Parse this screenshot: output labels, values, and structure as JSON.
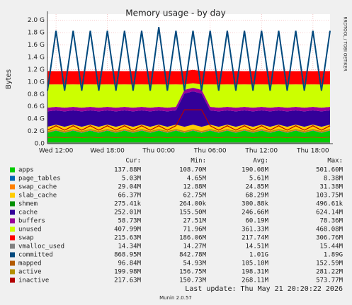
{
  "chart_data": {
    "type": "area",
    "title": "Memory usage - by day",
    "y_label": "Bytes",
    "side_note": "RRDTOOL / TOBI OETIKER",
    "footer": "Last update: Thu May 21 20:20:22 2026",
    "version": "Munin 2.0.57",
    "grid": true,
    "categories": [
      null,
      "Wed 12:00",
      null,
      null,
      null,
      null,
      null,
      "Wed 18:00",
      null,
      null,
      null,
      null,
      null,
      "Thu 00:00",
      null,
      null,
      null,
      null,
      null,
      "Thu 06:00",
      null,
      null,
      null,
      null,
      null,
      "Thu 12:00",
      null,
      null,
      null,
      null,
      null,
      "Thu 18:00",
      null,
      null
    ],
    "ylim": [
      0,
      2100000000.0
    ],
    "yticks": [
      {
        "value": 0,
        "label": "0.0"
      },
      {
        "value": 200000000.0,
        "label": "0.2 G"
      },
      {
        "value": 400000000.0,
        "label": "0.4 G"
      },
      {
        "value": 600000000.0,
        "label": "0.6 G"
      },
      {
        "value": 800000000.0,
        "label": "0.8 G"
      },
      {
        "value": 1000000000.0,
        "label": "1.0 G"
      },
      {
        "value": 1200000000.0,
        "label": "1.2 G"
      },
      {
        "value": 1400000000.0,
        "label": "1.4 G"
      },
      {
        "value": 1600000000.0,
        "label": "1.6 G"
      },
      {
        "value": 1800000000.0,
        "label": "1.8 G"
      },
      {
        "value": 2000000000.0,
        "label": "2.0 G"
      }
    ],
    "legend_columns": [
      "Cur:",
      "Min:",
      "Avg:",
      "Max:"
    ],
    "series": [
      {
        "name": "apps",
        "color": "#00CC00",
        "style": "area",
        "stats": [
          "137.88M",
          "108.70M",
          "190.08M",
          "501.60M"
        ],
        "values": [
          175000000.0,
          210000000.0,
          175000000.0,
          210000000.0,
          175000000.0,
          210000000.0,
          175000000.0,
          210000000.0,
          175000000.0,
          210000000.0,
          175000000.0,
          210000000.0,
          175000000.0,
          210000000.0,
          175000000.0,
          210000000.0,
          175000000.0,
          210000000.0,
          175000000.0,
          210000000.0,
          175000000.0,
          210000000.0,
          175000000.0,
          210000000.0,
          175000000.0,
          210000000.0,
          175000000.0,
          210000000.0,
          175000000.0,
          210000000.0,
          175000000.0,
          210000000.0,
          175000000.0,
          210000000.0
        ]
      },
      {
        "name": "page_tables",
        "color": "#0066B3",
        "style": "area",
        "stats": [
          "5.03M",
          "4.65M",
          "5.61M",
          "8.38M"
        ],
        "values": [
          5500000.0,
          5800000.0,
          5500000.0,
          5800000.0,
          5500000.0,
          5800000.0,
          5500000.0,
          5800000.0,
          5500000.0,
          5800000.0,
          5500000.0,
          5800000.0,
          5500000.0,
          5800000.0,
          5500000.0,
          5800000.0,
          5500000.0,
          5800000.0,
          5500000.0,
          5800000.0,
          5500000.0,
          5800000.0,
          5500000.0,
          5800000.0,
          5500000.0,
          5800000.0,
          5500000.0,
          5800000.0,
          5500000.0,
          5800000.0,
          5500000.0,
          5800000.0,
          5500000.0,
          5800000.0
        ]
      },
      {
        "name": "swap_cache",
        "color": "#FF8000",
        "style": "area",
        "stats": [
          "29.04M",
          "12.88M",
          "24.85M",
          "31.38M"
        ],
        "values": [
          25000000.0,
          24000000.0,
          25000000.0,
          24000000.0,
          25000000.0,
          24000000.0,
          25000000.0,
          24000000.0,
          25000000.0,
          24000000.0,
          25000000.0,
          24000000.0,
          25000000.0,
          24000000.0,
          25000000.0,
          24000000.0,
          25000000.0,
          24000000.0,
          25000000.0,
          24000000.0,
          25000000.0,
          24000000.0,
          25000000.0,
          24000000.0,
          25000000.0,
          24000000.0,
          25000000.0,
          24000000.0,
          25000000.0,
          24000000.0,
          25000000.0,
          24000000.0,
          25000000.0,
          24000000.0
        ]
      },
      {
        "name": "slab_cache",
        "color": "#FFCC00",
        "style": "area",
        "stats": [
          "66.37M",
          "62.75M",
          "68.29M",
          "103.75M"
        ],
        "values": [
          68000000.0,
          69000000.0,
          68000000.0,
          69000000.0,
          68000000.0,
          69000000.0,
          68000000.0,
          69000000.0,
          68000000.0,
          69000000.0,
          68000000.0,
          69000000.0,
          68000000.0,
          69000000.0,
          68000000.0,
          69000000.0,
          68000000.0,
          69000000.0,
          68000000.0,
          69000000.0,
          68000000.0,
          69000000.0,
          68000000.0,
          69000000.0,
          68000000.0,
          69000000.0,
          68000000.0,
          69000000.0,
          68000000.0,
          69000000.0,
          68000000.0,
          69000000.0,
          68000000.0,
          69000000.0
        ]
      },
      {
        "name": "shmem",
        "color": "#008F00",
        "style": "area",
        "stats": [
          "275.41k",
          "264.00k",
          "300.88k",
          "496.61k"
        ],
        "values": [
          300000.0,
          290000.0,
          300000.0,
          290000.0,
          300000.0,
          290000.0,
          300000.0,
          290000.0,
          300000.0,
          290000.0,
          300000.0,
          290000.0,
          300000.0,
          290000.0,
          300000.0,
          290000.0,
          300000.0,
          290000.0,
          300000.0,
          290000.0,
          300000.0,
          290000.0,
          300000.0,
          290000.0,
          300000.0,
          290000.0,
          300000.0,
          290000.0,
          300000.0,
          290000.0,
          300000.0,
          290000.0,
          300000.0,
          290000.0
        ]
      },
      {
        "name": "cache",
        "color": "#330099",
        "style": "area",
        "stats": [
          "252.01M",
          "155.50M",
          "246.66M",
          "624.14M"
        ],
        "values": [
          250000000.0,
          230000000.0,
          250000000.0,
          230000000.0,
          250000000.0,
          230000000.0,
          250000000.0,
          230000000.0,
          250000000.0,
          230000000.0,
          250000000.0,
          230000000.0,
          250000000.0,
          230000000.0,
          250000000.0,
          230000000.0,
          540000000.0,
          540000000.0,
          540000000.0,
          230000000.0,
          250000000.0,
          230000000.0,
          250000000.0,
          230000000.0,
          250000000.0,
          230000000.0,
          250000000.0,
          230000000.0,
          250000000.0,
          230000000.0,
          250000000.0,
          230000000.0,
          250000000.0,
          230000000.0
        ]
      },
      {
        "name": "buffers",
        "color": "#990099",
        "style": "area",
        "stats": [
          "58.73M",
          "27.51M",
          "60.19M",
          "78.36M"
        ],
        "values": [
          60000000.0,
          58000000.0,
          60000000.0,
          58000000.0,
          60000000.0,
          58000000.0,
          60000000.0,
          58000000.0,
          60000000.0,
          58000000.0,
          60000000.0,
          58000000.0,
          60000000.0,
          58000000.0,
          60000000.0,
          58000000.0,
          60000000.0,
          58000000.0,
          60000000.0,
          58000000.0,
          60000000.0,
          58000000.0,
          60000000.0,
          58000000.0,
          60000000.0,
          58000000.0,
          60000000.0,
          58000000.0,
          60000000.0,
          58000000.0,
          60000000.0,
          58000000.0,
          60000000.0,
          58000000.0
        ]
      },
      {
        "name": "unused",
        "color": "#CCFF00",
        "style": "area",
        "stats": [
          "407.99M",
          "71.96M",
          "361.33M",
          "468.08M"
        ],
        "values": [
          376000000.0,
          363000000.0,
          376000000.0,
          363000000.0,
          376000000.0,
          363000000.0,
          376000000.0,
          363000000.0,
          376000000.0,
          363000000.0,
          376000000.0,
          363000000.0,
          376000000.0,
          363000000.0,
          376000000.0,
          363000000.0,
          86000000.0,
          73000000.0,
          86000000.0,
          363000000.0,
          376000000.0,
          363000000.0,
          376000000.0,
          363000000.0,
          376000000.0,
          363000000.0,
          376000000.0,
          363000000.0,
          376000000.0,
          363000000.0,
          376000000.0,
          363000000.0,
          376000000.0,
          363000000.0
        ]
      },
      {
        "name": "swap",
        "color": "#FF0000",
        "style": "area",
        "stats": [
          "215.63M",
          "186.06M",
          "217.74M",
          "306.76M"
        ],
        "values": [
          218000000.0,
          216000000.0,
          218000000.0,
          216000000.0,
          218000000.0,
          216000000.0,
          218000000.0,
          216000000.0,
          218000000.0,
          216000000.0,
          218000000.0,
          216000000.0,
          218000000.0,
          216000000.0,
          218000000.0,
          216000000.0,
          218000000.0,
          216000000.0,
          218000000.0,
          216000000.0,
          218000000.0,
          216000000.0,
          218000000.0,
          216000000.0,
          218000000.0,
          216000000.0,
          218000000.0,
          216000000.0,
          218000000.0,
          216000000.0,
          218000000.0,
          216000000.0,
          218000000.0,
          216000000.0
        ]
      },
      {
        "name": "vmalloc_used",
        "color": "#808080",
        "style": "line",
        "stats": [
          "14.34M",
          "14.27M",
          "14.51M",
          "15.44M"
        ],
        "values": [
          14300000.0,
          14300000.0,
          14300000.0,
          14300000.0,
          14300000.0,
          14300000.0,
          14300000.0,
          14300000.0,
          14300000.0,
          14300000.0,
          14300000.0,
          14300000.0,
          14300000.0,
          14300000.0,
          14300000.0,
          14300000.0,
          14300000.0,
          14300000.0,
          14300000.0,
          14300000.0,
          14300000.0,
          14300000.0,
          14300000.0,
          14300000.0,
          14300000.0,
          14300000.0,
          14300000.0,
          14300000.0,
          14300000.0,
          14300000.0,
          14300000.0,
          14300000.0,
          14300000.0,
          14300000.0
        ]
      },
      {
        "name": "committed",
        "color": "#00487D",
        "style": "line",
        "stats": [
          "868.95M",
          "842.78M",
          "1.01G",
          "1.89G"
        ],
        "values": [
          860000000.0,
          1830000000.0,
          860000000.0,
          1830000000.0,
          860000000.0,
          1830000000.0,
          860000000.0,
          1830000000.0,
          860000000.0,
          1830000000.0,
          860000000.0,
          1830000000.0,
          860000000.0,
          1890000000.0,
          860000000.0,
          1830000000.0,
          860000000.0,
          1830000000.0,
          860000000.0,
          1830000000.0,
          860000000.0,
          1830000000.0,
          860000000.0,
          1830000000.0,
          860000000.0,
          1830000000.0,
          860000000.0,
          1830000000.0,
          860000000.0,
          1830000000.0,
          860000000.0,
          1830000000.0,
          860000000.0,
          1830000000.0
        ]
      },
      {
        "name": "mapped",
        "color": "#B35A00",
        "style": "line",
        "stats": [
          "96.84M",
          "54.93M",
          "105.10M",
          "152.59M"
        ],
        "values": [
          97000000.0,
          105000000.0,
          97000000.0,
          105000000.0,
          97000000.0,
          105000000.0,
          97000000.0,
          105000000.0,
          97000000.0,
          105000000.0,
          97000000.0,
          105000000.0,
          97000000.0,
          105000000.0,
          97000000.0,
          105000000.0,
          97000000.0,
          105000000.0,
          97000000.0,
          105000000.0,
          97000000.0,
          105000000.0,
          97000000.0,
          105000000.0,
          97000000.0,
          105000000.0,
          97000000.0,
          105000000.0,
          97000000.0,
          105000000.0,
          97000000.0,
          105000000.0,
          97000000.0,
          105000000.0
        ]
      },
      {
        "name": "active",
        "color": "#B38F00",
        "style": "line",
        "stats": [
          "199.98M",
          "156.75M",
          "198.31M",
          "281.22M"
        ],
        "values": [
          198000000.0,
          230000000.0,
          198000000.0,
          230000000.0,
          198000000.0,
          230000000.0,
          198000000.0,
          230000000.0,
          198000000.0,
          230000000.0,
          198000000.0,
          230000000.0,
          198000000.0,
          230000000.0,
          198000000.0,
          230000000.0,
          198000000.0,
          230000000.0,
          198000000.0,
          230000000.0,
          198000000.0,
          230000000.0,
          198000000.0,
          230000000.0,
          198000000.0,
          230000000.0,
          198000000.0,
          230000000.0,
          198000000.0,
          230000000.0,
          198000000.0,
          230000000.0,
          198000000.0,
          230000000.0
        ]
      },
      {
        "name": "inactive",
        "color": "#B30000",
        "style": "line",
        "stats": [
          "217.63M",
          "150.73M",
          "268.11M",
          "573.77M"
        ],
        "values": [
          218000000.0,
          290000000.0,
          218000000.0,
          290000000.0,
          218000000.0,
          290000000.0,
          218000000.0,
          290000000.0,
          218000000.0,
          290000000.0,
          218000000.0,
          290000000.0,
          218000000.0,
          290000000.0,
          218000000.0,
          290000000.0,
          550000000.0,
          550000000.0,
          550000000.0,
          290000000.0,
          218000000.0,
          290000000.0,
          218000000.0,
          290000000.0,
          218000000.0,
          290000000.0,
          218000000.0,
          290000000.0,
          218000000.0,
          290000000.0,
          218000000.0,
          290000000.0,
          218000000.0,
          290000000.0
        ]
      }
    ]
  }
}
